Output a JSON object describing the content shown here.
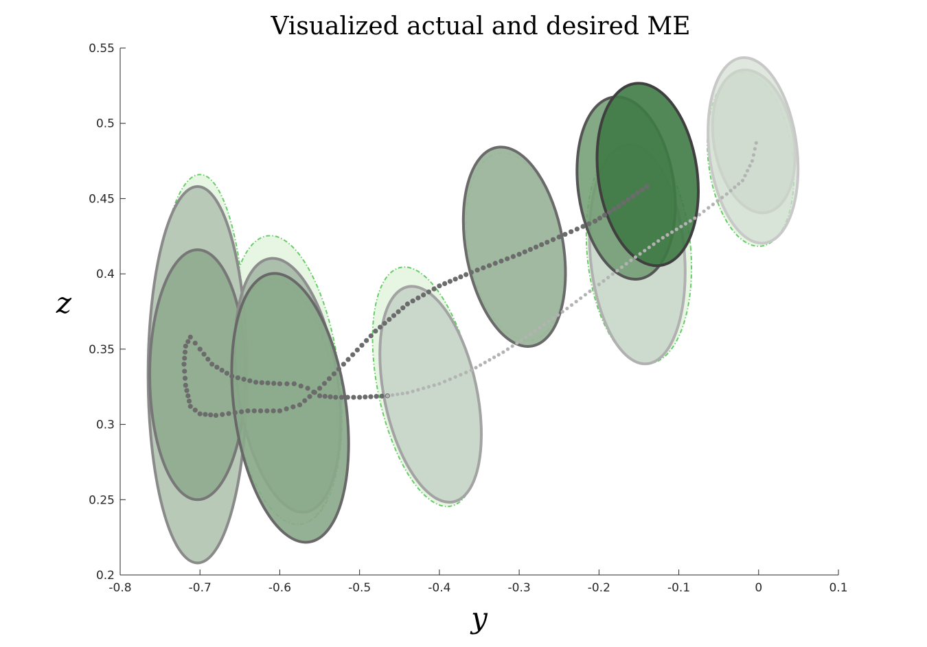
{
  "chart_data": {
    "type": "scatter",
    "title": "Visualized actual and desired ME",
    "xlabel": "y",
    "ylabel": "z",
    "xlim": [
      -0.8,
      0.1
    ],
    "ylim": [
      0.2,
      0.55
    ],
    "x_ticks": [
      "-0.8",
      "-0.7",
      "-0.6",
      "-0.5",
      "-0.4",
      "-0.3",
      "-0.2",
      "-0.1",
      "0",
      "0.1"
    ],
    "y_ticks": [
      "0.2",
      "0.25",
      "0.3",
      "0.35",
      "0.4",
      "0.45",
      "0.5",
      "0.55"
    ],
    "grid": false,
    "legend": "none",
    "colors": {
      "desired_ellipse_edge": "#66cc66",
      "desired_ellipse_fill": "#e3f5e0",
      "actual_ellipse_fill_light": "#c9d8cb",
      "actual_ellipse_fill_dark": "#3f7a45",
      "actual_trajectory": "#6b6b6b",
      "desired_trajectory": "#b3b3b3"
    },
    "desired_ellipses": [
      {
        "cx": -0.7,
        "cy": 0.343,
        "rx": 0.058,
        "ry": 0.123,
        "angle": 0
      },
      {
        "cx": -0.7,
        "cy": 0.328,
        "rx": 0.06,
        "ry": 0.087,
        "angle": 0
      },
      {
        "cx": -0.593,
        "cy": 0.33,
        "rx": 0.068,
        "ry": 0.096,
        "angle": -7
      },
      {
        "cx": -0.593,
        "cy": 0.315,
        "rx": 0.064,
        "ry": 0.082,
        "angle": -7
      },
      {
        "cx": -0.417,
        "cy": 0.325,
        "rx": 0.06,
        "ry": 0.081,
        "angle": -12
      },
      {
        "cx": -0.305,
        "cy": 0.418,
        "rx": 0.059,
        "ry": 0.063,
        "angle": -10
      },
      {
        "cx": -0.15,
        "cy": 0.415,
        "rx": 0.065,
        "ry": 0.075,
        "angle": -5
      },
      {
        "cx": -0.01,
        "cy": 0.476,
        "rx": 0.053,
        "ry": 0.058,
        "angle": -7
      }
    ],
    "actual_ellipses": [
      {
        "cx": -0.703,
        "cy": 0.333,
        "rx": 0.062,
        "ry": 0.125,
        "angle": 0,
        "fill": "#b8c9b8",
        "stroke": "#8a8a8a",
        "opacity": 1
      },
      {
        "cx": -0.703,
        "cy": 0.333,
        "rx": 0.06,
        "ry": 0.083,
        "angle": 0,
        "fill": "#8aa88a",
        "stroke": "#777777",
        "opacity": 0.8
      },
      {
        "cx": -0.59,
        "cy": 0.326,
        "rx": 0.063,
        "ry": 0.085,
        "angle": -8,
        "fill": "#9eb29e",
        "stroke": "#8d8d8d",
        "opacity": 0.8
      },
      {
        "cx": -0.587,
        "cy": 0.311,
        "rx": 0.07,
        "ry": 0.09,
        "angle": -8,
        "fill": "#8aa88a",
        "stroke": "#686868",
        "opacity": 0.9
      },
      {
        "cx": -0.411,
        "cy": 0.32,
        "rx": 0.058,
        "ry": 0.073,
        "angle": -12,
        "fill": "#c9d8cb",
        "stroke": "#a3a3a3",
        "opacity": 1
      },
      {
        "cx": -0.306,
        "cy": 0.418,
        "rx": 0.061,
        "ry": 0.067,
        "angle": -10,
        "fill": "#9cb59c",
        "stroke": "#6a6a6a",
        "opacity": 0.95
      },
      {
        "cx": -0.152,
        "cy": 0.413,
        "rx": 0.059,
        "ry": 0.073,
        "angle": -5,
        "fill": "#c9d8cb",
        "stroke": "#b0b0b0",
        "opacity": 0.9
      },
      {
        "cx": -0.166,
        "cy": 0.457,
        "rx": 0.06,
        "ry": 0.061,
        "angle": -8,
        "fill": "#6f9a70",
        "stroke": "#555555",
        "opacity": 0.85
      },
      {
        "cx": -0.139,
        "cy": 0.466,
        "rx": 0.062,
        "ry": 0.061,
        "angle": -8,
        "fill": "#3f7a45",
        "stroke": "#3f3f3f",
        "opacity": 0.9
      },
      {
        "cx": -0.006,
        "cy": 0.488,
        "rx": 0.05,
        "ry": 0.048,
        "angle": -10,
        "fill": "#c8d6c8",
        "stroke": "#b8b8b8",
        "opacity": 0.85
      },
      {
        "cx": -0.007,
        "cy": 0.482,
        "rx": 0.055,
        "ry": 0.062,
        "angle": -7,
        "fill": "#d2ddd2",
        "stroke": "#c8c8c8",
        "opacity": 0.7
      }
    ],
    "series": [
      {
        "values_xy": [
          [
            -0.14,
            0.458
          ],
          [
            -0.175,
            0.445
          ],
          [
            -0.205,
            0.435
          ],
          [
            -0.235,
            0.428
          ],
          [
            -0.265,
            0.421
          ],
          [
            -0.3,
            0.413
          ],
          [
            -0.33,
            0.407
          ],
          [
            -0.36,
            0.401
          ],
          [
            -0.4,
            0.392
          ],
          [
            -0.44,
            0.38
          ],
          [
            -0.48,
            0.362
          ],
          [
            -0.52,
            0.34
          ],
          [
            -0.55,
            0.324
          ],
          [
            -0.575,
            0.313
          ],
          [
            -0.6,
            0.309
          ],
          [
            -0.64,
            0.309
          ],
          [
            -0.68,
            0.306
          ],
          [
            -0.7,
            0.307
          ],
          [
            -0.712,
            0.312
          ],
          [
            -0.718,
            0.326
          ],
          [
            -0.72,
            0.34
          ],
          [
            -0.718,
            0.352
          ],
          [
            -0.712,
            0.358
          ],
          [
            -0.7,
            0.35
          ],
          [
            -0.685,
            0.34
          ],
          [
            -0.66,
            0.332
          ],
          [
            -0.63,
            0.328
          ],
          [
            -0.6,
            0.327
          ],
          [
            -0.582,
            0.327
          ],
          [
            -0.565,
            0.324
          ],
          [
            -0.55,
            0.319
          ],
          [
            -0.53,
            0.318
          ],
          [
            -0.5,
            0.318
          ],
          [
            -0.465,
            0.319
          ]
        ],
        "marker": "filled-circle",
        "color": "#6b6b6b"
      },
      {
        "values_xy": [
          [
            -0.465,
            0.319
          ],
          [
            -0.44,
            0.321
          ],
          [
            -0.4,
            0.327
          ],
          [
            -0.36,
            0.336
          ],
          [
            -0.32,
            0.348
          ],
          [
            -0.28,
            0.362
          ],
          [
            -0.24,
            0.377
          ],
          [
            -0.2,
            0.393
          ],
          [
            -0.16,
            0.409
          ],
          [
            -0.12,
            0.424
          ],
          [
            -0.08,
            0.437
          ],
          [
            -0.04,
            0.453
          ],
          [
            -0.02,
            0.462
          ],
          [
            -0.008,
            0.475
          ],
          [
            -0.003,
            0.487
          ]
        ],
        "marker": "filled-circle",
        "color": "#b3b3b3"
      }
    ]
  }
}
